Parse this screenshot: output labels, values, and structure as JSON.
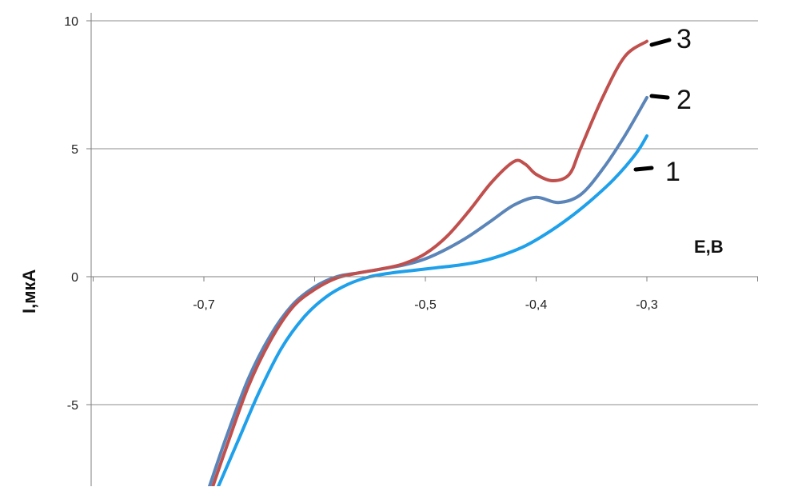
{
  "chart_data": {
    "type": "line",
    "xlabel": "E,B",
    "ylabel": "I,мкА",
    "xlim": [
      -0.8,
      -0.2
    ],
    "ylim": [
      -8,
      10
    ],
    "x_ticks": [
      -0.7,
      -0.5,
      -0.4,
      -0.3
    ],
    "x_tick_labels": [
      "-0,7",
      "-0,5",
      "-0,4",
      "-0,3"
    ],
    "y_ticks": [
      10,
      5,
      0,
      -5
    ],
    "y_tick_labels": [
      "10",
      "5",
      "0",
      "-5"
    ],
    "grid": "horizontal",
    "series": [
      {
        "name": "1",
        "color": "#1fa0ea",
        "x": [
          -0.687,
          -0.67,
          -0.65,
          -0.63,
          -0.61,
          -0.59,
          -0.57,
          -0.55,
          -0.53,
          -0.51,
          -0.49,
          -0.47,
          -0.45,
          -0.43,
          -0.41,
          -0.39,
          -0.37,
          -0.35,
          -0.33,
          -0.31,
          -0.3
        ],
        "y": [
          -8.2,
          -6.5,
          -4.5,
          -2.8,
          -1.6,
          -0.8,
          -0.3,
          0.0,
          0.15,
          0.25,
          0.35,
          0.45,
          0.6,
          0.85,
          1.2,
          1.7,
          2.3,
          3.0,
          3.8,
          4.8,
          5.5
        ]
      },
      {
        "name": "2",
        "color": "#5b85b8",
        "x": [
          -0.695,
          -0.68,
          -0.66,
          -0.64,
          -0.62,
          -0.6,
          -0.58,
          -0.56,
          -0.54,
          -0.52,
          -0.5,
          -0.48,
          -0.46,
          -0.44,
          -0.42,
          -0.4,
          -0.38,
          -0.36,
          -0.34,
          -0.32,
          -0.3
        ],
        "y": [
          -8.2,
          -6.3,
          -4.0,
          -2.3,
          -1.1,
          -0.4,
          0.0,
          0.15,
          0.3,
          0.45,
          0.7,
          1.1,
          1.6,
          2.2,
          2.8,
          3.1,
          2.9,
          3.2,
          4.2,
          5.5,
          7.0
        ]
      },
      {
        "name": "3",
        "color": "#c0504d",
        "x": [
          -0.692,
          -0.68,
          -0.66,
          -0.64,
          -0.62,
          -0.6,
          -0.58,
          -0.56,
          -0.54,
          -0.52,
          -0.5,
          -0.48,
          -0.46,
          -0.44,
          -0.42,
          -0.41,
          -0.4,
          -0.385,
          -0.37,
          -0.36,
          -0.34,
          -0.32,
          -0.3
        ],
        "y": [
          -8.2,
          -6.7,
          -4.3,
          -2.5,
          -1.2,
          -0.5,
          -0.05,
          0.15,
          0.3,
          0.5,
          0.9,
          1.6,
          2.6,
          3.7,
          4.5,
          4.4,
          4.0,
          3.75,
          4.0,
          5.0,
          7.0,
          8.6,
          9.2
        ]
      }
    ]
  }
}
